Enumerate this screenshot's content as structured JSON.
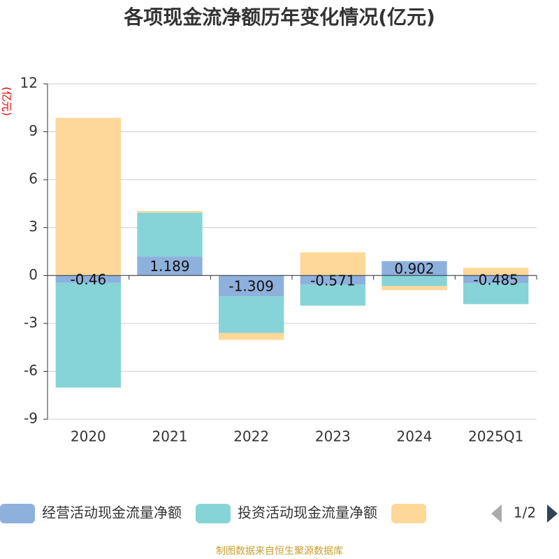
{
  "chart_data": {
    "type": "bar",
    "stacked": true,
    "title": "各项现金流净额历年变化情况(亿元)",
    "y_label": "(亿元)",
    "categories": [
      "2020",
      "2021",
      "2022",
      "2023",
      "2024",
      "2025Q1"
    ],
    "series": [
      {
        "name": "经营活动现金流量净额",
        "color": "#8eb0dc",
        "values": [
          -0.46,
          1.189,
          -1.309,
          -0.571,
          0.902,
          -0.485
        ],
        "show_labels": true
      },
      {
        "name": "投资活动现金流量净额",
        "color": "#86d4d8",
        "values": [
          -6.56,
          2.75,
          -2.29,
          -1.32,
          -0.66,
          -1.31
        ]
      },
      {
        "color": "#fdd899",
        "values": [
          9.87,
          0.1,
          -0.43,
          1.45,
          -0.26,
          0.48
        ]
      }
    ],
    "ylim": [
      -9,
      12
    ],
    "yticks": [
      -9,
      -6,
      -3,
      0,
      3,
      6,
      9,
      12
    ],
    "grid": true,
    "legend_page": "1/2",
    "source": "制图数据来自恒生聚源数据库"
  }
}
